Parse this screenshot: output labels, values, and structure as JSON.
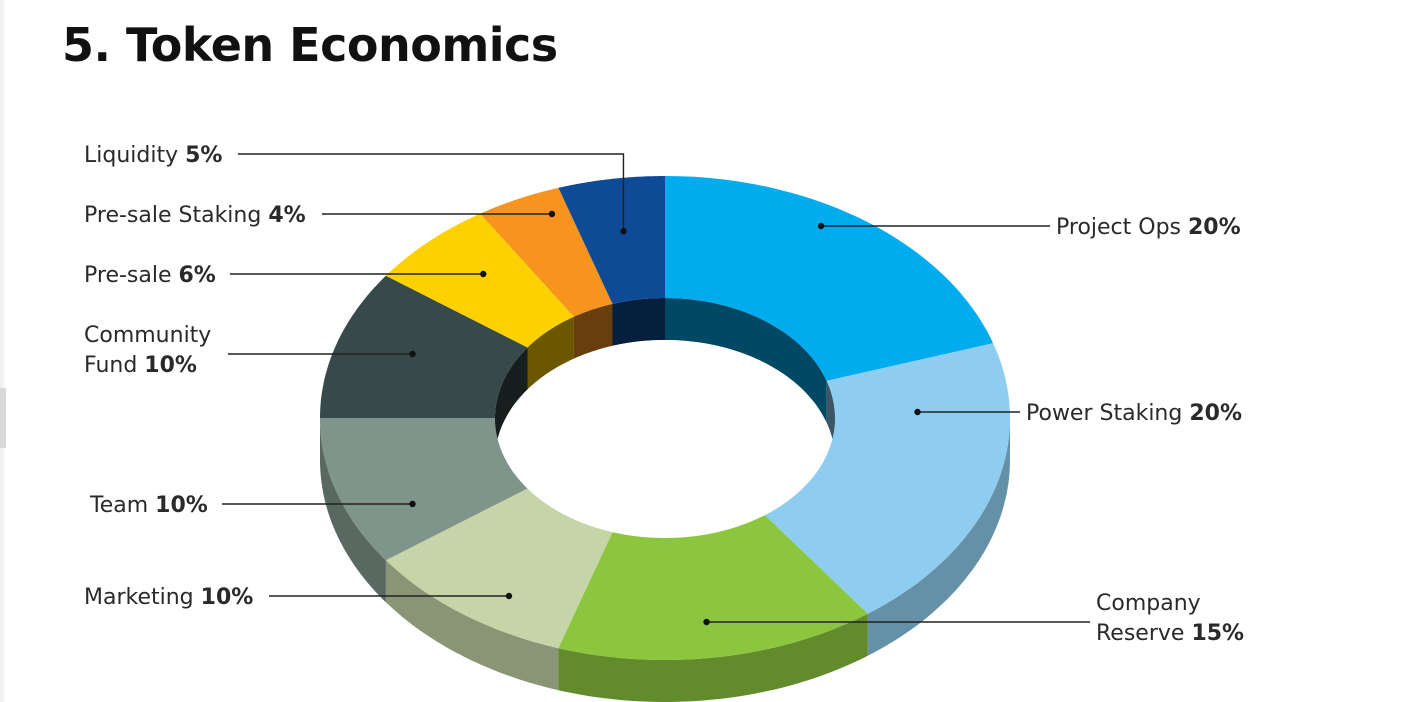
{
  "page": {
    "title": "5. Token Economics"
  },
  "chart_data": {
    "type": "pie",
    "style": "3d-donut",
    "title": "5. Token Economics",
    "unit": "%",
    "slices": [
      {
        "label": "Project Ops",
        "value": 20,
        "value_text": "20%",
        "color": "#00ACEE"
      },
      {
        "label": "Power Staking",
        "value": 20,
        "value_text": "20%",
        "color": "#8FCDF0"
      },
      {
        "label": "Company Reserve",
        "value": 15,
        "value_text": "15%",
        "color": "#8CC63F"
      },
      {
        "label": "Marketing",
        "value": 10,
        "value_text": "10%",
        "color": "#C5D5A8"
      },
      {
        "label": "Team",
        "value": 10,
        "value_text": "10%",
        "color": "#7F948B"
      },
      {
        "label": "Community Fund",
        "value": 10,
        "value_text": "10%",
        "color": "#374948"
      },
      {
        "label": "Pre-sale",
        "value": 6,
        "value_text": "6%",
        "color": "#FDD000"
      },
      {
        "label": "Pre-sale Staking",
        "value": 4,
        "value_text": "4%",
        "color": "#F7941D"
      },
      {
        "label": "Liquidity",
        "value": 5,
        "value_text": "5%",
        "color": "#0F4A96"
      }
    ]
  }
}
